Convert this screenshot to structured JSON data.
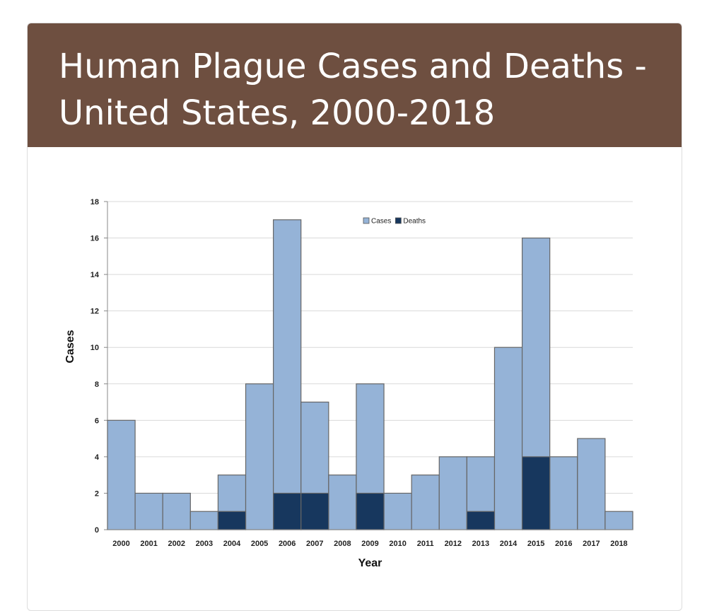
{
  "chart_data": {
    "type": "bar",
    "title": "Human Plague Cases and Deaths - United States, 2000-2018",
    "categories": [
      "2000",
      "2001",
      "2002",
      "2003",
      "2004",
      "2005",
      "2006",
      "2007",
      "2008",
      "2009",
      "2010",
      "2011",
      "2012",
      "2013",
      "2014",
      "2015",
      "2016",
      "2017",
      "2018"
    ],
    "series": [
      {
        "name": "Cases",
        "color": "#95b3d7",
        "values": [
          6,
          2,
          2,
          1,
          3,
          8,
          17,
          7,
          3,
          8,
          2,
          3,
          4,
          4,
          10,
          16,
          4,
          5,
          1
        ]
      },
      {
        "name": "Deaths",
        "color": "#17375e",
        "values": [
          0,
          0,
          0,
          0,
          1,
          0,
          2,
          2,
          0,
          2,
          0,
          0,
          0,
          1,
          0,
          4,
          0,
          0,
          0
        ]
      }
    ],
    "x_label": "Year",
    "y_label": "Cases",
    "ylim": [
      0,
      18
    ],
    "yticks": [
      0,
      2,
      4,
      6,
      8,
      10,
      12,
      14,
      16,
      18
    ],
    "grid": true,
    "legend": "top"
  }
}
